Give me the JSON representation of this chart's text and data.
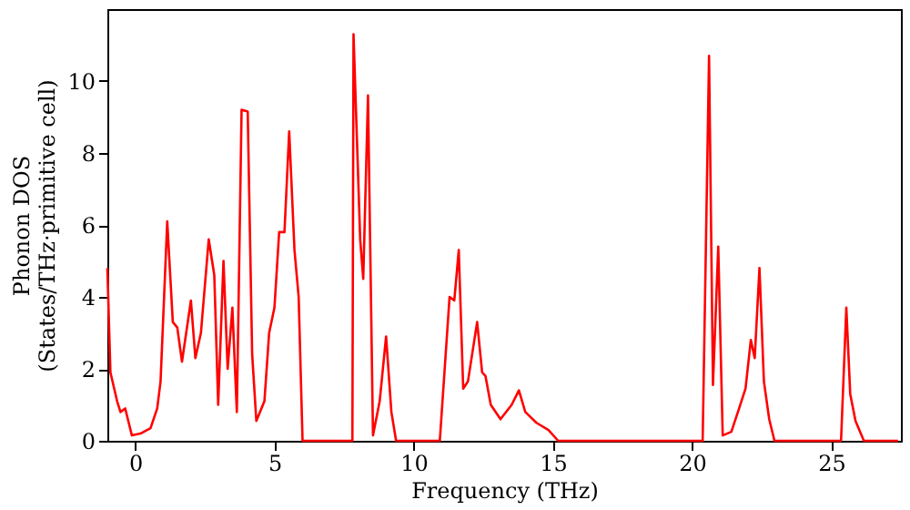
{
  "chart_data": {
    "type": "line",
    "xlabel": "Frequency (THz)",
    "ylabel": "Phonon DOS\n(States/THz·primitive cell)",
    "x": [
      -1.0,
      -0.89,
      -0.65,
      -0.53,
      -0.36,
      -0.12,
      0.19,
      0.55,
      0.79,
      0.91,
      1.15,
      1.35,
      1.51,
      1.68,
      2.0,
      2.16,
      2.36,
      2.64,
      2.84,
      2.98,
      3.17,
      3.32,
      3.49,
      3.65,
      3.82,
      4.04,
      4.2,
      4.35,
      4.64,
      4.81,
      5.0,
      5.17,
      5.36,
      5.53,
      5.72,
      5.87,
      6.01,
      7.8,
      7.84,
      8.08,
      8.19,
      8.36,
      8.54,
      8.78,
      9.01,
      9.2,
      9.37,
      10.94,
      11.29,
      11.46,
      11.62,
      11.78,
      11.95,
      12.28,
      12.46,
      12.58,
      12.77,
      13.12,
      13.52,
      13.78,
      14.01,
      14.41,
      14.84,
      15.19,
      20.38,
      20.61,
      20.75,
      20.94,
      21.1,
      21.41,
      21.69,
      21.92,
      22.11,
      22.25,
      22.42,
      22.58,
      22.77,
      22.96,
      25.35,
      25.54,
      25.68,
      25.87,
      26.17,
      27.4
    ],
    "series": [
      {
        "color": "#ff0000",
        "values": [
          4.8,
          1.9,
          1.1,
          0.8,
          0.9,
          0.15,
          0.2,
          0.35,
          0.9,
          1.65,
          6.1,
          3.3,
          3.15,
          2.2,
          3.9,
          2.3,
          3.0,
          5.6,
          4.6,
          1.0,
          5.0,
          2.0,
          3.7,
          0.8,
          9.2,
          9.15,
          2.4,
          0.55,
          1.1,
          3.0,
          3.7,
          5.8,
          5.8,
          8.6,
          5.3,
          4.0,
          0,
          0,
          11.3,
          5.6,
          4.5,
          9.6,
          0.15,
          1.1,
          2.9,
          0.8,
          0,
          0,
          4.0,
          3.9,
          5.3,
          1.45,
          1.65,
          3.3,
          1.9,
          1.8,
          1.0,
          0.6,
          1.0,
          1.4,
          0.8,
          0.5,
          0.3,
          0,
          0,
          10.7,
          1.55,
          5.4,
          0.15,
          0.25,
          0.9,
          1.45,
          2.8,
          2.3,
          4.8,
          1.65,
          0.6,
          0,
          0,
          3.7,
          1.3,
          0.55,
          0,
          0
        ]
      }
    ],
    "xlim": [
      -1,
      27.5
    ],
    "xticks": [
      0,
      5,
      10,
      15,
      20,
      25
    ],
    "ylim": [
      0,
      12
    ],
    "yticks": [
      0,
      2,
      4,
      6,
      8,
      10
    ],
    "grid": false
  }
}
